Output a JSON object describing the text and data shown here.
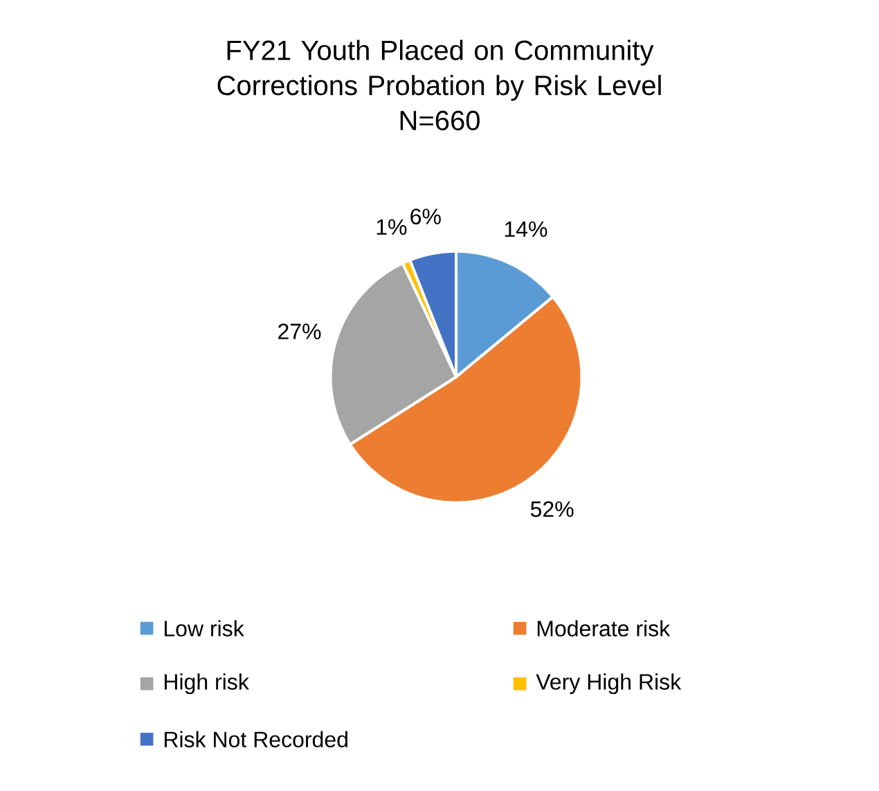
{
  "chart_data": {
    "type": "pie",
    "title": "FY21 Youth Placed on Community Corrections Probation by Risk Level",
    "subtitle": "N=660",
    "categories": [
      "Low risk",
      "Moderate risk",
      "High risk",
      "Very High Risk",
      "Risk Not Recorded"
    ],
    "values": [
      14,
      52,
      27,
      1,
      6
    ],
    "value_labels": [
      "14%",
      "52%",
      "27%",
      "1%",
      "6%"
    ],
    "colors": [
      "#5b9bd5",
      "#ed7d31",
      "#a5a5a5",
      "#ffc000",
      "#4472c4"
    ],
    "legend": "bottom"
  }
}
